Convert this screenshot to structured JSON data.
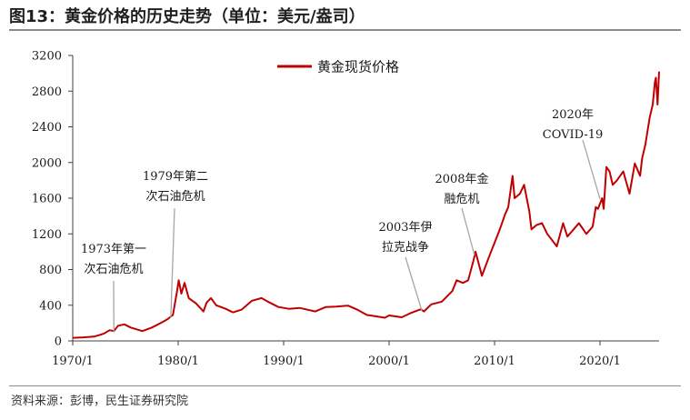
{
  "title": "图13：黄金价格的历史走势（单位：美元/盎司）",
  "source": "资料来源：彭博，民生证券研究院",
  "chart_data": {
    "type": "line",
    "legend_position": "top-center",
    "grid": false,
    "ylim": [
      0,
      3200
    ],
    "yticks": [
      0,
      400,
      800,
      1200,
      1600,
      2000,
      2400,
      2800,
      3200
    ],
    "xlim": [
      1970,
      2025.6
    ],
    "xticks": [
      {
        "value": 1970,
        "label": "1970/1"
      },
      {
        "value": 1980,
        "label": "1980/1"
      },
      {
        "value": 1990,
        "label": "1990/1"
      },
      {
        "value": 2000,
        "label": "2000/1"
      },
      {
        "value": 2010,
        "label": "2010/1"
      },
      {
        "value": 2020,
        "label": "2020/1"
      }
    ],
    "series": [
      {
        "name": "黄金现货价格",
        "color": "#c00000",
        "x": [
          1970,
          1971,
          1972,
          1972.6,
          1973,
          1973.5,
          1973.9,
          1974.3,
          1974.9,
          1975.5,
          1976.6,
          1977.5,
          1978.5,
          1979,
          1979.5,
          1979.9,
          1980.05,
          1980.3,
          1980.6,
          1981,
          1981.7,
          1982.4,
          1982.7,
          1983.1,
          1983.6,
          1984.5,
          1985.2,
          1986,
          1987,
          1987.9,
          1988.5,
          1989.5,
          1990.5,
          1991.5,
          1993,
          1994,
          1995,
          1996.1,
          1997,
          1997.9,
          1998.5,
          1999.6,
          2000,
          2001.2,
          2002,
          2003,
          2003.3,
          2004,
          2005,
          2006,
          2006.4,
          2007,
          2007.5,
          2008,
          2008.2,
          2008.8,
          2009.5,
          2010,
          2010.5,
          2011,
          2011.3,
          2011.7,
          2011.9,
          2012.4,
          2012.8,
          2013.3,
          2013.5,
          2014,
          2014.5,
          2015,
          2015.9,
          2016.5,
          2016.9,
          2017.5,
          2018,
          2018.7,
          2019.3,
          2019.6,
          2019.8,
          2020.2,
          2020.35,
          2020.6,
          2020.9,
          2021.2,
          2021.6,
          2022.2,
          2022.8,
          2023.3,
          2023.8,
          2024,
          2024.3,
          2024.7,
          2025,
          2025.2,
          2025.3,
          2025.45,
          2025.6
        ],
        "values": [
          35,
          40,
          48,
          68,
          85,
          120,
          110,
          170,
          185,
          150,
          110,
          150,
          210,
          245,
          290,
          560,
          680,
          530,
          650,
          480,
          420,
          330,
          430,
          480,
          400,
          360,
          320,
          350,
          450,
          480,
          440,
          380,
          360,
          370,
          330,
          380,
          385,
          395,
          350,
          290,
          280,
          260,
          285,
          265,
          310,
          355,
          330,
          410,
          440,
          560,
          680,
          650,
          680,
          900,
          1000,
          730,
          950,
          1100,
          1250,
          1420,
          1500,
          1850,
          1600,
          1650,
          1750,
          1450,
          1250,
          1300,
          1320,
          1200,
          1060,
          1320,
          1170,
          1250,
          1320,
          1200,
          1280,
          1500,
          1480,
          1600,
          1480,
          1950,
          1900,
          1750,
          1800,
          1900,
          1650,
          1990,
          1850,
          2050,
          2200,
          2500,
          2650,
          2900,
          2950,
          2650,
          3020
        ]
      }
    ],
    "annotations": [
      {
        "lines": [
          "1973年第一",
          "次石油危机"
        ],
        "x": 1973.9,
        "y": 100
      },
      {
        "lines": [
          "1979年第二",
          "次石油危机"
        ],
        "x": 1979.3,
        "y": 260
      },
      {
        "lines": [
          "2003年伊",
          "拉克战争"
        ],
        "x": 2003.1,
        "y": 340
      },
      {
        "lines": [
          "2008年金",
          "融危机"
        ],
        "x": 2008.1,
        "y": 960
      },
      {
        "lines": [
          "2020年",
          "COVID-19"
        ],
        "x": 2020.0,
        "y": 1590
      }
    ]
  }
}
